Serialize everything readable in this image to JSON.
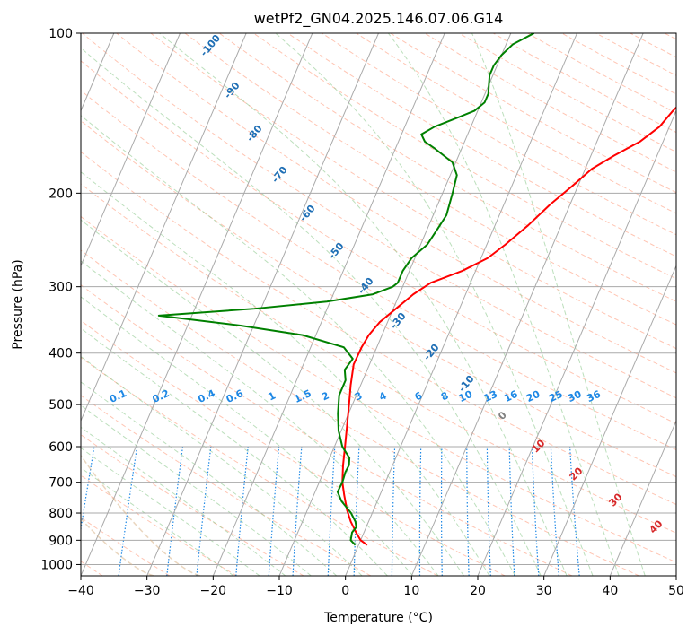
{
  "chart_data": {
    "type": "line",
    "subtype": "skew-T log-P diagram",
    "title": "wetPf2_GN04.2025.146.07.06.G14",
    "xlabel": "Temperature (°C)",
    "ylabel": "Pressure (hPa)",
    "xlim": [
      -40,
      50
    ],
    "ylim": [
      1050,
      100
    ],
    "y_scale": "log",
    "x_ticks": [
      "−40",
      "−30",
      "−20",
      "−10",
      "0",
      "10",
      "20",
      "30",
      "40",
      "50"
    ],
    "y_ticks": [
      "100",
      "200",
      "300",
      "400",
      "500",
      "600",
      "700",
      "800",
      "900",
      "1000"
    ],
    "grid": true,
    "series": [
      {
        "color": "#ff0000",
        "pressure": [
          919,
          900,
          870,
          830,
          790,
          740,
          700,
          650,
          600,
          550,
          500,
          460,
          420,
          390,
          370,
          350,
          330,
          310,
          295,
          280,
          265,
          250,
          230,
          210,
          195,
          180,
          170,
          160,
          150,
          140,
          130,
          120,
          110,
          100
        ],
        "temperature": [
          1.3,
          0.0,
          -1.2,
          -2.7,
          -4.0,
          -5.4,
          -6.5,
          -7.5,
          -8.4,
          -9.4,
          -10.5,
          -11.5,
          -12.4,
          -12.3,
          -12.0,
          -11.2,
          -9.6,
          -7.9,
          -6.0,
          -2.0,
          1.0,
          2.8,
          5.0,
          7.0,
          9.0,
          11.0,
          13.5,
          16.5,
          18.5,
          19.5,
          21.0,
          23.0,
          25.5,
          28.5
        ]
      },
      {
        "color": "#008000",
        "pressure": [
          919,
          900,
          870,
          850,
          830,
          800,
          760,
          730,
          700,
          670,
          650,
          630,
          600,
          560,
          520,
          480,
          450,
          430,
          410,
          390,
          370,
          355,
          340,
          330,
          320,
          310,
          300,
          295,
          290,
          280,
          265,
          250,
          235,
          220,
          200,
          185,
          175,
          165,
          160,
          155,
          150,
          145,
          140,
          135,
          130,
          125,
          120,
          115,
          110,
          105,
          100
        ],
        "temperature": [
          -0.5,
          -1.5,
          -1.8,
          -1.5,
          -2.0,
          -3.2,
          -5.4,
          -6.6,
          -6.5,
          -6.7,
          -6.6,
          -7.0,
          -8.8,
          -10.4,
          -11.6,
          -12.6,
          -12.6,
          -13.4,
          -12.9,
          -15.0,
          -22.0,
          -32.0,
          -45.0,
          -31.0,
          -20.5,
          -14.0,
          -11.5,
          -11.0,
          -11.0,
          -11.0,
          -10.5,
          -9.0,
          -8.5,
          -8.0,
          -8.5,
          -9.0,
          -10.5,
          -14.0,
          -16.0,
          -17.0,
          -15.5,
          -13.0,
          -10.5,
          -9.5,
          -9.5,
          -10.0,
          -10.5,
          -10.5,
          -10.0,
          -9.0,
          -6.5
        ]
      }
    ],
    "dry_adiabats_label_values": [
      "-100",
      "-90",
      "-80",
      "-70",
      "-60",
      "-50",
      "-40",
      "-30",
      "-20",
      "-10"
    ],
    "moist_adiabat_label_values": [
      "0",
      "10",
      "20",
      "30",
      "40"
    ],
    "mixing_ratio_label_values": [
      "0.1",
      "0.2",
      "0.4",
      "0.6",
      "1",
      "1.5",
      "2",
      "3",
      "4",
      "6",
      "8",
      "10",
      "13",
      "16",
      "20",
      "25",
      "30",
      "36"
    ],
    "colors": {
      "temperature": "#ff0000",
      "dewpoint": "#008000",
      "isotherms": "#aaaaaa",
      "dry_adiabats": "#ff9f80",
      "moist_adiabats": "#8fc98f",
      "mixing_ratio": "#1e88e5",
      "dry_adiabat_labels": "#1f6fb5",
      "moist_adiabat_labels": "#d62728",
      "moist_zero_label": "#808080",
      "isobars": "#aaaaaa"
    }
  }
}
